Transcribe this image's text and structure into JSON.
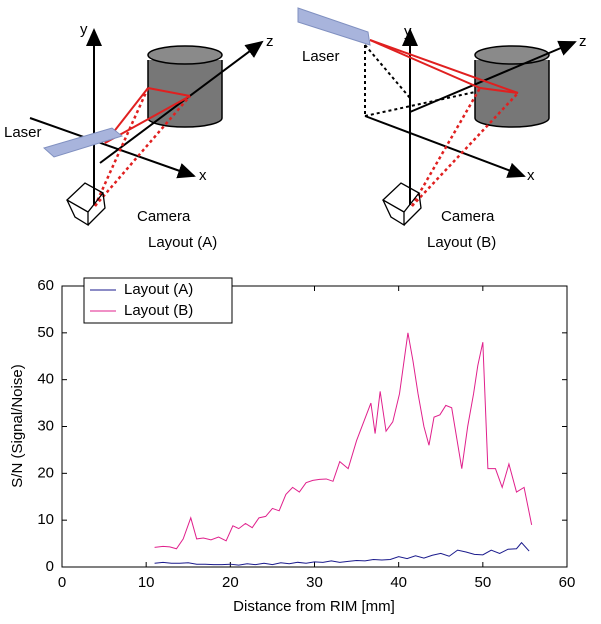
{
  "diagrams": [
    {
      "y": "y",
      "z": "z",
      "x": "x",
      "laser": "Laser",
      "camera": "Camera",
      "caption": "Layout (A)"
    },
    {
      "y": "y",
      "z": "z",
      "x": "x",
      "laser": "Laser",
      "camera": "Camera",
      "caption": "Layout (B)"
    }
  ],
  "chart_data": {
    "type": "line",
    "xlabel": "Distance from RIM [mm]",
    "ylabel": "S/N  (Signal/Noise)",
    "xlim": [
      0,
      60
    ],
    "ylim": [
      0,
      60
    ],
    "xticks": [
      0,
      10,
      20,
      30,
      40,
      50,
      60
    ],
    "yticks": [
      0,
      10,
      20,
      30,
      40,
      50,
      60
    ],
    "legend": "upper left",
    "series": [
      {
        "name": "Layout (A)",
        "color": "#1a1a8c",
        "x": [
          11,
          12,
          13,
          14,
          15,
          16,
          17,
          18,
          19,
          20,
          21,
          22,
          23,
          24,
          25,
          26,
          27,
          28,
          29,
          30,
          31,
          32,
          33,
          34,
          35,
          36,
          37,
          38,
          39,
          40,
          41,
          42,
          43,
          44,
          45,
          46,
          47,
          48,
          49,
          50,
          51,
          52,
          53,
          54,
          54.6,
          55.5
        ],
        "values": [
          0.8,
          1,
          0.8,
          0.8,
          0.9,
          0.6,
          0.6,
          0.5,
          0.5,
          0.6,
          0.4,
          0.7,
          0.5,
          0.8,
          0.5,
          0.9,
          0.7,
          1,
          0.8,
          1.1,
          1,
          1.3,
          1,
          1.2,
          1.4,
          1.3,
          1.6,
          1.5,
          1.6,
          2.2,
          1.8,
          2.4,
          1.9,
          2.5,
          2.9,
          2.3,
          3.6,
          3.2,
          2.7,
          2.6,
          3.6,
          2.9,
          3.8,
          3.9,
          5.2,
          3.4
        ]
      },
      {
        "name": "Layout (B)",
        "color": "#e0208c",
        "x": [
          11,
          12,
          12.8,
          13.6,
          14.4,
          15.3,
          16,
          16.8,
          17.7,
          18.6,
          19.5,
          20.3,
          21,
          21.8,
          22.6,
          23.4,
          24.2,
          25,
          25.8,
          26.6,
          27.4,
          28.2,
          29,
          29.8,
          30.6,
          31.4,
          32.2,
          33,
          34,
          35,
          36.7,
          37.2,
          37.8,
          38.5,
          39.3,
          40.1,
          41.1,
          41.7,
          42.3,
          43,
          43.6,
          44.2,
          44.9,
          45.6,
          46.3,
          47.5,
          48.2,
          48.9,
          49.4,
          50,
          50.6,
          51.5,
          52.3,
          53.1,
          54,
          54.9,
          55.8
        ],
        "values": [
          4.2,
          4.4,
          4.3,
          3.9,
          6,
          10.5,
          6,
          6.2,
          5.8,
          6.4,
          5.6,
          8.8,
          8.2,
          9.3,
          8.4,
          10.5,
          10.8,
          12.5,
          12,
          15.5,
          17,
          16,
          18,
          18.5,
          18.7,
          18.8,
          18.3,
          22.5,
          21,
          27,
          35,
          28.5,
          37.5,
          29,
          31,
          37,
          50,
          44,
          37,
          30,
          26,
          32,
          32.5,
          34.5,
          34,
          21,
          30,
          37,
          43,
          48,
          21,
          21,
          17,
          22,
          16,
          17,
          9
        ]
      }
    ]
  }
}
